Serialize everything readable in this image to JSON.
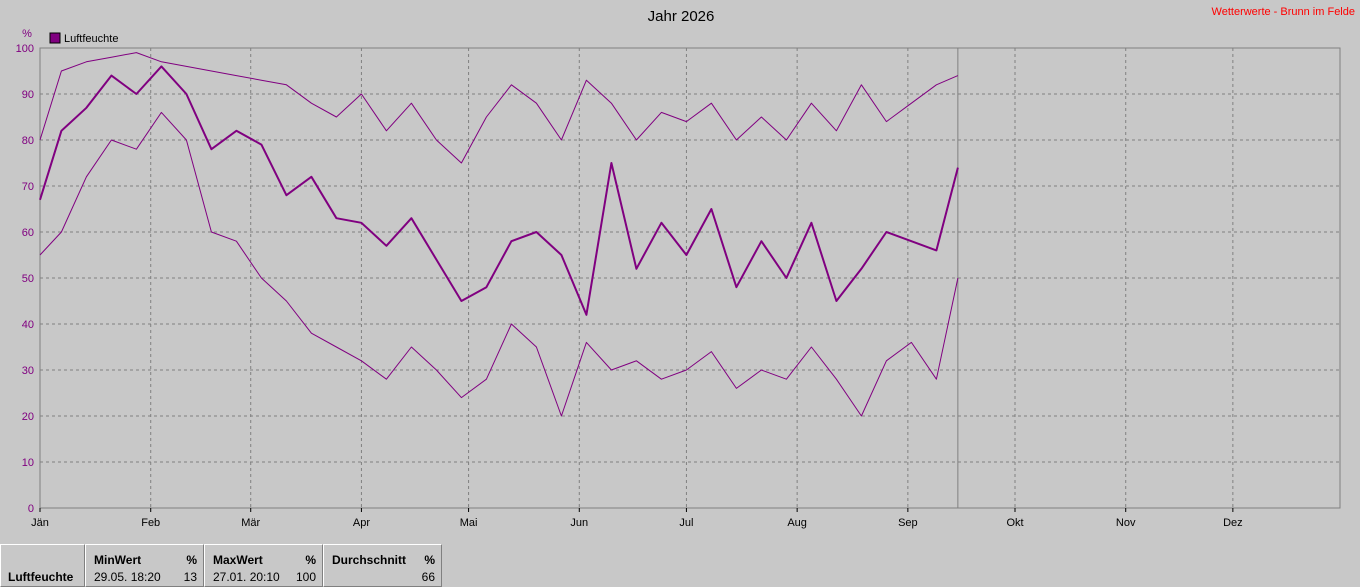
{
  "header": {
    "title": "Jahr 2026",
    "site_label": "Wetterwerte - Brunn im Felde",
    "site_color": "#ff0000"
  },
  "chart_data": {
    "type": "line",
    "title": "Jahr 2026",
    "ylabel": "%",
    "ylim": [
      0,
      100
    ],
    "yticks": [
      0,
      10,
      20,
      30,
      40,
      50,
      60,
      70,
      80,
      90,
      100
    ],
    "xlim": [
      "2026-01-01",
      "2026-12-31"
    ],
    "xticks": [
      {
        "label": "Jän",
        "date": "2026-01-01"
      },
      {
        "label": "Feb",
        "date": "2026-02-01"
      },
      {
        "label": "Mär",
        "date": "2026-03-01"
      },
      {
        "label": "Apr",
        "date": "2026-04-01"
      },
      {
        "label": "Mai",
        "date": "2026-05-01"
      },
      {
        "label": "Jun",
        "date": "2026-06-01"
      },
      {
        "label": "Jul",
        "date": "2026-07-01"
      },
      {
        "label": "Aug",
        "date": "2026-08-01"
      },
      {
        "label": "Sep",
        "date": "2026-09-01"
      },
      {
        "label": "Okt",
        "date": "2026-10-01"
      },
      {
        "label": "Nov",
        "date": "2026-11-01"
      },
      {
        "label": "Dez",
        "date": "2026-12-01"
      }
    ],
    "grid": true,
    "legend": {
      "label": "Luftfeuchte",
      "placement": "top-left",
      "color": "#800080"
    },
    "current_date": "2026-09-15",
    "color": "#800080",
    "series": [
      {
        "name": "Luftfeuchte",
        "x": [
          "2026-01-01",
          "2026-01-07",
          "2026-01-14",
          "2026-01-21",
          "2026-01-28",
          "2026-02-04",
          "2026-02-11",
          "2026-02-18",
          "2026-02-25",
          "2026-03-04",
          "2026-03-11",
          "2026-03-18",
          "2026-03-25",
          "2026-04-01",
          "2026-04-08",
          "2026-04-15",
          "2026-04-22",
          "2026-04-29",
          "2026-05-06",
          "2026-05-13",
          "2026-05-20",
          "2026-05-27",
          "2026-06-03",
          "2026-06-10",
          "2026-06-17",
          "2026-06-24",
          "2026-07-01",
          "2026-07-08",
          "2026-07-15",
          "2026-07-22",
          "2026-07-29",
          "2026-08-05",
          "2026-08-12",
          "2026-08-19",
          "2026-08-26",
          "2026-09-02",
          "2026-09-09",
          "2026-09-15"
        ],
        "y": [
          67,
          82,
          87,
          94,
          90,
          96,
          90,
          78,
          82,
          79,
          68,
          72,
          63,
          62,
          57,
          63,
          54,
          45,
          48,
          58,
          60,
          55,
          42,
          75,
          52,
          62,
          55,
          65,
          48,
          58,
          50,
          62,
          45,
          52,
          60,
          58,
          56,
          74
        ]
      },
      {
        "name": "",
        "x": [
          "2026-01-01",
          "2026-01-07",
          "2026-01-14",
          "2026-01-21",
          "2026-01-28",
          "2026-02-04",
          "2026-02-11",
          "2026-02-18",
          "2026-02-25",
          "2026-03-04",
          "2026-03-11",
          "2026-03-18",
          "2026-03-25",
          "2026-04-01",
          "2026-04-08",
          "2026-04-15",
          "2026-04-22",
          "2026-04-29",
          "2026-05-06",
          "2026-05-13",
          "2026-05-20",
          "2026-05-27",
          "2026-06-03",
          "2026-06-10",
          "2026-06-17",
          "2026-06-24",
          "2026-07-01",
          "2026-07-08",
          "2026-07-15",
          "2026-07-22",
          "2026-07-29",
          "2026-08-05",
          "2026-08-12",
          "2026-08-19",
          "2026-08-26",
          "2026-09-02",
          "2026-09-09",
          "2026-09-15"
        ],
        "y": [
          80,
          95,
          97,
          98,
          99,
          97,
          96,
          95,
          94,
          93,
          92,
          88,
          85,
          90,
          82,
          88,
          80,
          75,
          85,
          92,
          88,
          80,
          93,
          88,
          80,
          86,
          84,
          88,
          80,
          85,
          80,
          88,
          82,
          92,
          84,
          88,
          92,
          94
        ]
      },
      {
        "name": "",
        "x": [
          "2026-01-01",
          "2026-01-07",
          "2026-01-14",
          "2026-01-21",
          "2026-01-28",
          "2026-02-04",
          "2026-02-11",
          "2026-02-18",
          "2026-02-25",
          "2026-03-04",
          "2026-03-11",
          "2026-03-18",
          "2026-03-25",
          "2026-04-01",
          "2026-04-08",
          "2026-04-15",
          "2026-04-22",
          "2026-04-29",
          "2026-05-06",
          "2026-05-13",
          "2026-05-20",
          "2026-05-27",
          "2026-06-03",
          "2026-06-10",
          "2026-06-17",
          "2026-06-24",
          "2026-07-01",
          "2026-07-08",
          "2026-07-15",
          "2026-07-22",
          "2026-07-29",
          "2026-08-05",
          "2026-08-12",
          "2026-08-19",
          "2026-08-26",
          "2026-09-02",
          "2026-09-09",
          "2026-09-15"
        ],
        "y": [
          55,
          60,
          72,
          80,
          78,
          86,
          80,
          60,
          58,
          50,
          45,
          38,
          35,
          32,
          28,
          35,
          30,
          24,
          28,
          40,
          35,
          20,
          36,
          30,
          32,
          28,
          30,
          34,
          26,
          30,
          28,
          35,
          28,
          20,
          32,
          36,
          28,
          50
        ]
      }
    ]
  },
  "footer": {
    "row_label": "Luftfeuchte",
    "min": {
      "header": "MinWert",
      "unit": "%",
      "time": "29.05.  18:20",
      "value": "13"
    },
    "max": {
      "header": "MaxWert",
      "unit": "%",
      "time": "27.01.  20:10",
      "value": "100"
    },
    "avg": {
      "header": "Durchschnitt",
      "unit": "%",
      "value": "66"
    }
  }
}
